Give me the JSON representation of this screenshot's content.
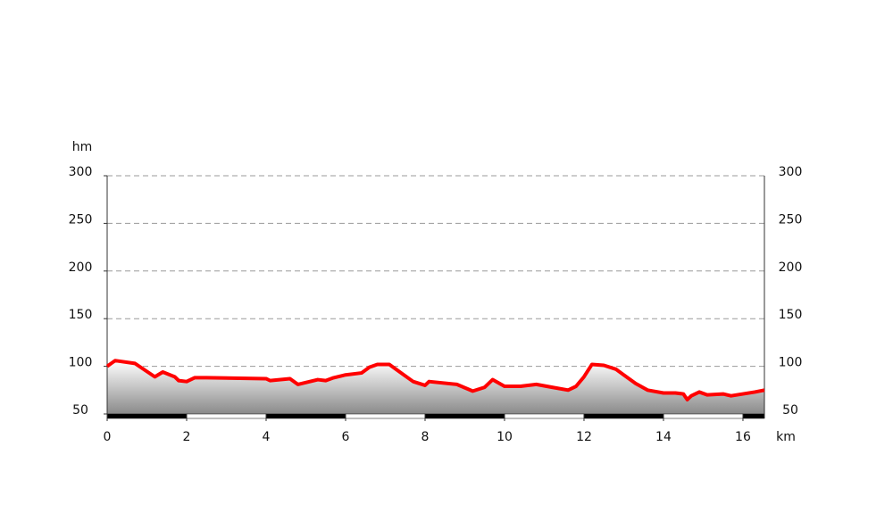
{
  "chart_data": {
    "type": "line",
    "y_unit": "hm",
    "x_unit": "km",
    "x": [
      0,
      0.2,
      0.7,
      1.2,
      1.4,
      1.7,
      1.8,
      2.0,
      2.2,
      2.5,
      4.0,
      4.1,
      4.6,
      4.8,
      5.3,
      5.5,
      5.7,
      6.0,
      6.4,
      6.6,
      6.8,
      7.1,
      7.4,
      7.7,
      8.0,
      8.1,
      8.8,
      9.2,
      9.5,
      9.7,
      10.0,
      10.4,
      10.8,
      11.2,
      11.6,
      11.8,
      12.0,
      12.2,
      12.5,
      12.8,
      13.0,
      13.3,
      13.6,
      14.0,
      14.3,
      14.5,
      14.6,
      14.7,
      14.9,
      15.1,
      15.5,
      15.7,
      16.0,
      16.3,
      16.54
    ],
    "series": [
      {
        "name": "elevation",
        "color": "#ff0000",
        "values": [
          100,
          106,
          103,
          89,
          94,
          89,
          85,
          84,
          88,
          88,
          87,
          85,
          87,
          81,
          86,
          85,
          88,
          91,
          93,
          99,
          102,
          102,
          93,
          84,
          80,
          84,
          81,
          74,
          78,
          86,
          79,
          79,
          81,
          78,
          75,
          79,
          89,
          102,
          101,
          97,
          91,
          82,
          75,
          72,
          72,
          71,
          65,
          69,
          73,
          70,
          71,
          69,
          71,
          73,
          75
        ]
      }
    ],
    "xlim": [
      0,
      16.54
    ],
    "xticks": [
      0,
      2,
      4,
      6,
      8,
      10,
      12,
      14,
      16
    ],
    "ylim": [
      50,
      300
    ],
    "yticks": [
      50,
      100,
      150,
      200,
      250,
      300
    ],
    "grid": true
  }
}
